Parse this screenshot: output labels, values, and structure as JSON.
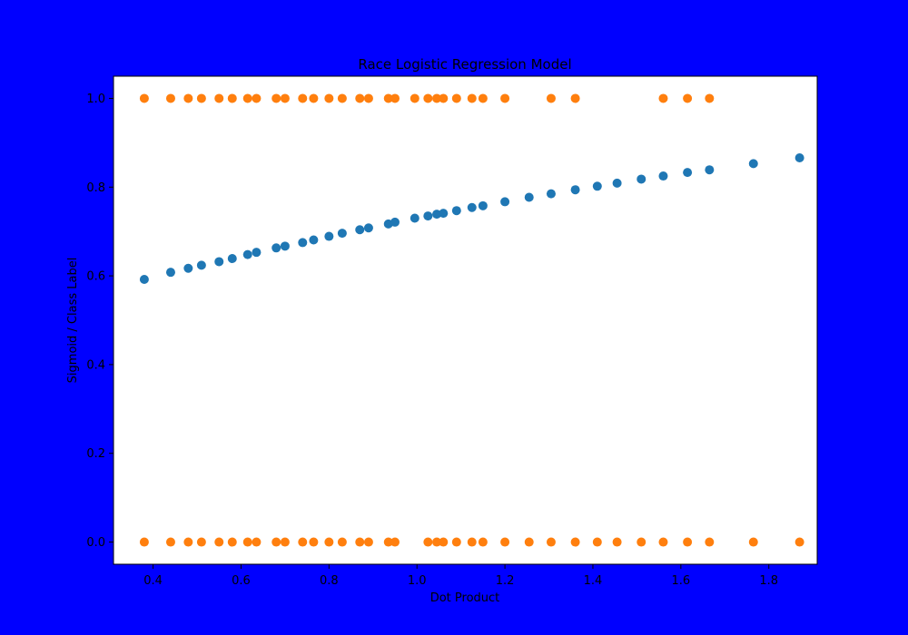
{
  "chart_data": {
    "type": "scatter",
    "title": "Race Logistic Regression Model",
    "xlabel": "Dot Product",
    "ylabel": "Sigmoid / Class Label",
    "xlim": [
      0.31,
      1.91
    ],
    "ylim": [
      -0.05,
      1.05
    ],
    "xticks": [
      0.4,
      0.6,
      0.8,
      1.0,
      1.2,
      1.4,
      1.6,
      1.8
    ],
    "yticks": [
      0.0,
      0.2,
      0.4,
      0.6,
      0.8,
      1.0
    ],
    "xtick_labels": [
      "0.4",
      "0.6",
      "0.8",
      "1.0",
      "1.2",
      "1.4",
      "1.6",
      "1.8"
    ],
    "ytick_labels": [
      "0.0",
      "0.2",
      "0.4",
      "0.6",
      "0.8",
      "1.0"
    ],
    "grid": false,
    "series": [
      {
        "color": "#1f77b4",
        "x": [
          0.38,
          0.44,
          0.48,
          0.51,
          0.55,
          0.58,
          0.615,
          0.635,
          0.68,
          0.7,
          0.74,
          0.765,
          0.8,
          0.83,
          0.87,
          0.89,
          0.935,
          0.95,
          0.995,
          1.025,
          1.045,
          1.06,
          1.09,
          1.125,
          1.15,
          1.2,
          1.255,
          1.305,
          1.36,
          1.41,
          1.455,
          1.51,
          1.56,
          1.615,
          1.665,
          1.765,
          1.87
        ],
        "y": [
          0.592,
          0.608,
          0.617,
          0.624,
          0.632,
          0.639,
          0.648,
          0.653,
          0.663,
          0.667,
          0.675,
          0.681,
          0.689,
          0.696,
          0.704,
          0.708,
          0.717,
          0.721,
          0.73,
          0.735,
          0.739,
          0.741,
          0.747,
          0.754,
          0.758,
          0.767,
          0.777,
          0.785,
          0.794,
          0.802,
          0.809,
          0.818,
          0.825,
          0.833,
          0.839,
          0.853,
          0.866
        ]
      },
      {
        "color": "#ff7f0e",
        "x": [
          0.38,
          0.44,
          0.48,
          0.51,
          0.55,
          0.58,
          0.615,
          0.635,
          0.68,
          0.7,
          0.74,
          0.765,
          0.8,
          0.83,
          0.87,
          0.89,
          0.935,
          0.95,
          0.995,
          1.025,
          1.045,
          1.06,
          1.09,
          1.125,
          1.15,
          1.2,
          1.305,
          1.36,
          1.56,
          1.615,
          1.665,
          0.38,
          0.44,
          0.48,
          0.51,
          0.55,
          0.58,
          0.615,
          0.635,
          0.68,
          0.7,
          0.74,
          0.765,
          0.8,
          0.83,
          0.87,
          0.89,
          0.935,
          0.95,
          1.025,
          1.045,
          1.06,
          1.09,
          1.125,
          1.15,
          1.2,
          1.255,
          1.305,
          1.36,
          1.41,
          1.455,
          1.51,
          1.56,
          1.615,
          1.665,
          1.765,
          1.87
        ],
        "y": [
          1,
          1,
          1,
          1,
          1,
          1,
          1,
          1,
          1,
          1,
          1,
          1,
          1,
          1,
          1,
          1,
          1,
          1,
          1,
          1,
          1,
          1,
          1,
          1,
          1,
          1,
          1,
          1,
          1,
          1,
          1,
          0,
          0,
          0,
          0,
          0,
          0,
          0,
          0,
          0,
          0,
          0,
          0,
          0,
          0,
          0,
          0,
          0,
          0,
          0,
          0,
          0,
          0,
          0,
          0,
          0,
          0,
          0,
          0,
          0,
          0,
          0,
          0,
          0,
          0,
          0,
          0
        ]
      }
    ]
  }
}
